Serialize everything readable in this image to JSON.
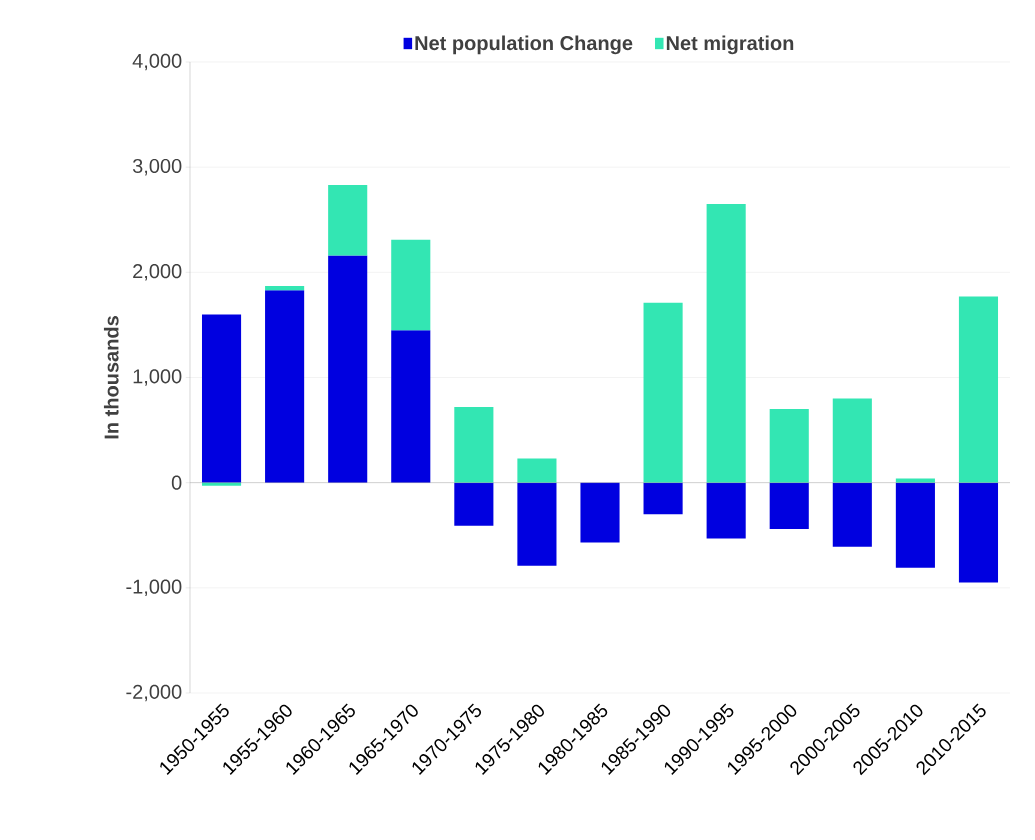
{
  "chart_data": {
    "type": "bar",
    "stacked": true,
    "ylabel": "In thousands",
    "categories": [
      "1950-1955",
      "1955-1960",
      "1960-1965",
      "1965-1970",
      "1970-1975",
      "1975-1980",
      "1980-1985",
      "1985-1990",
      "1990-1995",
      "1995-2000",
      "2000-2005",
      "2005-2010",
      "2010-2015"
    ],
    "series": [
      {
        "name": "Net population Change",
        "color": "#0000e0",
        "values": [
          1600,
          1830,
          2160,
          1450,
          -410,
          -790,
          -570,
          -300,
          -530,
          -440,
          -610,
          -810,
          -950
        ]
      },
      {
        "name": "Net migration",
        "color": "#33e6b3",
        "values": [
          -30,
          40,
          670,
          860,
          720,
          230,
          0,
          1710,
          2650,
          700,
          800,
          40,
          1770
        ]
      }
    ],
    "ylim": [
      -2000,
      4000
    ],
    "yticks": [
      {
        "value": -2000,
        "label": "-2,000"
      },
      {
        "value": -1000,
        "label": "-1,000"
      },
      0,
      {
        "value": 1000,
        "label": "1,000"
      },
      {
        "value": 2000,
        "label": "2,000"
      },
      {
        "value": 3000,
        "label": "3,000"
      },
      {
        "value": 4000,
        "label": "4,000"
      }
    ],
    "grid": "y",
    "legend": "top"
  }
}
